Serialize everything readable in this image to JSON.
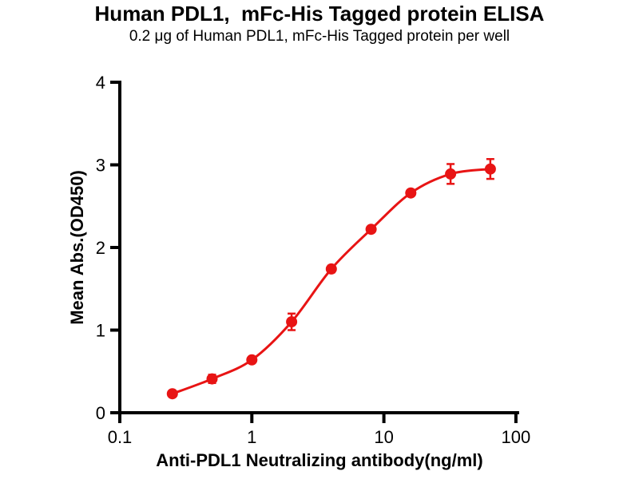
{
  "chart_data": {
    "type": "scatter",
    "title": "Human PDL1,  mFc-His Tagged protein ELISA",
    "subtitle": "0.2 μg of Human PDL1, mFc-His Tagged protein per well",
    "xlabel": "Anti-PDL1 Neutralizing antibody(ng/ml)",
    "ylabel": "Mean Abs.(OD450)",
    "x_scale": "log",
    "xlim": [
      0.1,
      100
    ],
    "ylim": [
      0,
      4
    ],
    "x_ticks": [
      0.1,
      1,
      10,
      100
    ],
    "x_tick_labels": [
      "0.1",
      "1",
      "10",
      "100"
    ],
    "y_ticks": [
      0,
      1,
      2,
      3,
      4
    ],
    "y_tick_labels": [
      "0",
      "1",
      "2",
      "3",
      "4"
    ],
    "grid": false,
    "legend_position": "none",
    "axis_color": "#000000",
    "series": [
      {
        "color": "#e81414",
        "marker": "circle",
        "line": "smooth",
        "x": [
          0.25,
          0.5,
          1,
          2,
          4,
          8,
          16,
          32,
          64
        ],
        "y": [
          0.23,
          0.41,
          0.64,
          1.1,
          1.74,
          2.22,
          2.66,
          2.89,
          2.95
        ],
        "yerr": [
          0.02,
          0.05,
          0.02,
          0.1,
          0.04,
          0.03,
          0.03,
          0.12,
          0.12
        ]
      }
    ]
  }
}
